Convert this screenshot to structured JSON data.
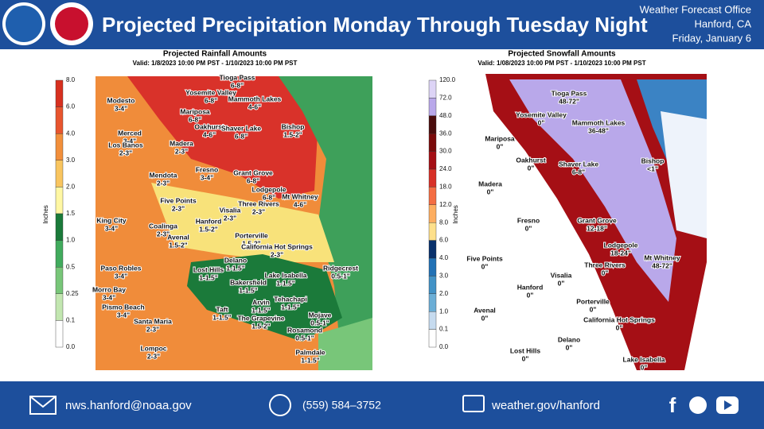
{
  "header": {
    "title": "Projected Precipitation Monday Through Tuesday Night",
    "office": [
      "Weather Forecast Office",
      "Hanford, CA",
      "Friday, January 6"
    ]
  },
  "rainfall_map": {
    "title": "Projected Rainfall Amounts",
    "valid": "Valid: 1/8/2023 10:00 PM PST - 1/10/2023 10:00 PM PST",
    "unit": "Inches",
    "scale": [
      "8.0",
      "6.0",
      "4.0",
      "3.0",
      "2.0",
      "1.5",
      "1.0",
      "0.5",
      "0.25",
      "0.1",
      "0.0"
    ],
    "places": [
      {
        "name": "Tioga Pass",
        "amount": "6-8\""
      },
      {
        "name": "Yosemite Valley",
        "amount": "6-8\""
      },
      {
        "name": "Mammoth Lakes",
        "amount": "4-6\""
      },
      {
        "name": "Modesto",
        "amount": "3-4\""
      },
      {
        "name": "Mariposa",
        "amount": "6-8\""
      },
      {
        "name": "Oakhurst",
        "amount": "4-6\""
      },
      {
        "name": "Shaver Lake",
        "amount": "6-8\""
      },
      {
        "name": "Bishop",
        "amount": "1.5-2\""
      },
      {
        "name": "Merced",
        "amount": "3-4\""
      },
      {
        "name": "Madera",
        "amount": "2-3\""
      },
      {
        "name": "Los Banos",
        "amount": "2-3\""
      },
      {
        "name": "Fresno",
        "amount": "3-4\""
      },
      {
        "name": "Grant Grove",
        "amount": "6-8\""
      },
      {
        "name": "Mendota",
        "amount": "2-3\""
      },
      {
        "name": "Lodgepole",
        "amount": "6-8\""
      },
      {
        "name": "Mt Whitney",
        "amount": "4-6\""
      },
      {
        "name": "Five Points",
        "amount": "2-3\""
      },
      {
        "name": "Three Rivers",
        "amount": "2-3\""
      },
      {
        "name": "Visalia",
        "amount": "2-3\""
      },
      {
        "name": "Hanford",
        "amount": "1.5-2\""
      },
      {
        "name": "King City",
        "amount": "3-4\""
      },
      {
        "name": "Coalinga",
        "amount": "2-3\""
      },
      {
        "name": "Porterville",
        "amount": "1.5-2\""
      },
      {
        "name": "Avenal",
        "amount": "1.5-2\""
      },
      {
        "name": "California Hot Springs",
        "amount": "2-3\""
      },
      {
        "name": "Delano",
        "amount": "1-1.5\""
      },
      {
        "name": "Ridgecrest",
        "amount": "0.5-1\""
      },
      {
        "name": "Lost Hills",
        "amount": "1-1.5\""
      },
      {
        "name": "Paso Robles",
        "amount": "3-4\""
      },
      {
        "name": "Lake Isabella",
        "amount": "1-1.5\""
      },
      {
        "name": "Bakersfield",
        "amount": "1-1.5\""
      },
      {
        "name": "Morro Bay",
        "amount": "3-4\""
      },
      {
        "name": "Tehachapi",
        "amount": "1-1.5\""
      },
      {
        "name": "Arvin",
        "amount": "1-1.5\""
      },
      {
        "name": "Pismo Beach",
        "amount": "3-4\""
      },
      {
        "name": "Taft",
        "amount": "1-1.5\""
      },
      {
        "name": "Mojave",
        "amount": "0.5-1\""
      },
      {
        "name": "The Grapevine",
        "amount": "1.5-2\""
      },
      {
        "name": "Santa Maria",
        "amount": "2-3\""
      },
      {
        "name": "Rosamond",
        "amount": "0.5-1\""
      },
      {
        "name": "Lompoc",
        "amount": "2-3\""
      },
      {
        "name": "Palmdale",
        "amount": "1-1.5\""
      }
    ]
  },
  "snowfall_map": {
    "title": "Projected Snowfall Amounts",
    "valid": "Valid: 1/08/2023 10:00 PM PST - 1/10/2023 10:00 PM PST",
    "unit": "Inches",
    "scale": [
      "120.0",
      "72.0",
      "48.0",
      "36.0",
      "30.0",
      "24.0",
      "18.0",
      "12.0",
      "8.0",
      "6.0",
      "4.0",
      "3.0",
      "2.0",
      "1.0",
      "0.1",
      "0.0"
    ],
    "places": [
      {
        "name": "Tioga Pass",
        "amount": "48-72\""
      },
      {
        "name": "Yosemite Valley",
        "amount": "0\""
      },
      {
        "name": "Mammoth Lakes",
        "amount": "36-48\""
      },
      {
        "name": "Mariposa",
        "amount": "0\""
      },
      {
        "name": "Oakhurst",
        "amount": "0\""
      },
      {
        "name": "Shaver Lake",
        "amount": "6-8\""
      },
      {
        "name": "Bishop",
        "amount": "<1\""
      },
      {
        "name": "Madera",
        "amount": "0\""
      },
      {
        "name": "Fresno",
        "amount": "0\""
      },
      {
        "name": "Grant Grove",
        "amount": "12-18\""
      },
      {
        "name": "Lodgepole",
        "amount": "18-24\""
      },
      {
        "name": "Mt Whitney",
        "amount": "48-72\""
      },
      {
        "name": "Five Points",
        "amount": "0\""
      },
      {
        "name": "Three Rivers",
        "amount": "0\""
      },
      {
        "name": "Visalia",
        "amount": "0\""
      },
      {
        "name": "Hanford",
        "amount": "0\""
      },
      {
        "name": "Porterville",
        "amount": "0\""
      },
      {
        "name": "Avenal",
        "amount": "0\""
      },
      {
        "name": "California Hot Springs",
        "amount": "0\""
      },
      {
        "name": "Delano",
        "amount": "0\""
      },
      {
        "name": "Lost Hills",
        "amount": "0\""
      },
      {
        "name": "Lake Isabella",
        "amount": "0\""
      }
    ]
  },
  "footer": {
    "email": "nws.hanford@noaa.gov",
    "phone": "(559)  584–3752",
    "website": "weather.gov/hanford"
  }
}
